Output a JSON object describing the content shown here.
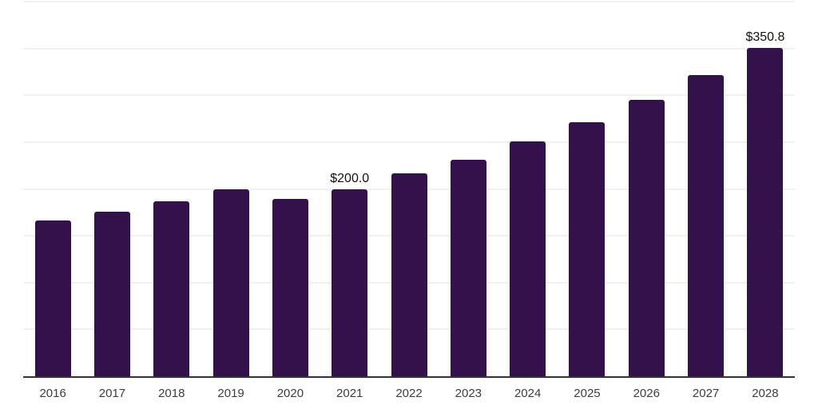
{
  "chart_data": {
    "type": "bar",
    "title": "",
    "xlabel": "",
    "ylabel": "",
    "categories": [
      "2016",
      "2017",
      "2018",
      "2019",
      "2020",
      "2021",
      "2022",
      "2023",
      "2024",
      "2025",
      "2026",
      "2027",
      "2028"
    ],
    "values": [
      166.7,
      176.1,
      186.6,
      199.5,
      189.2,
      200.0,
      217.0,
      231.3,
      251.2,
      271.7,
      295.0,
      321.7,
      350.8
    ],
    "data_labels": {
      "2021": "$200.0",
      "2028": "$350.8"
    },
    "ylim": [
      0,
      400
    ],
    "gridline_step": 50,
    "grid": "horizontal",
    "legend_position": "none",
    "y_axis_ticks_visible": false
  },
  "colors": {
    "background": "#ffffff",
    "bar": "#33114b",
    "gridline": "#f0f0f0",
    "axis_line": "#333333",
    "tick_label": "#3d3d3d",
    "data_label": "#111111"
  }
}
